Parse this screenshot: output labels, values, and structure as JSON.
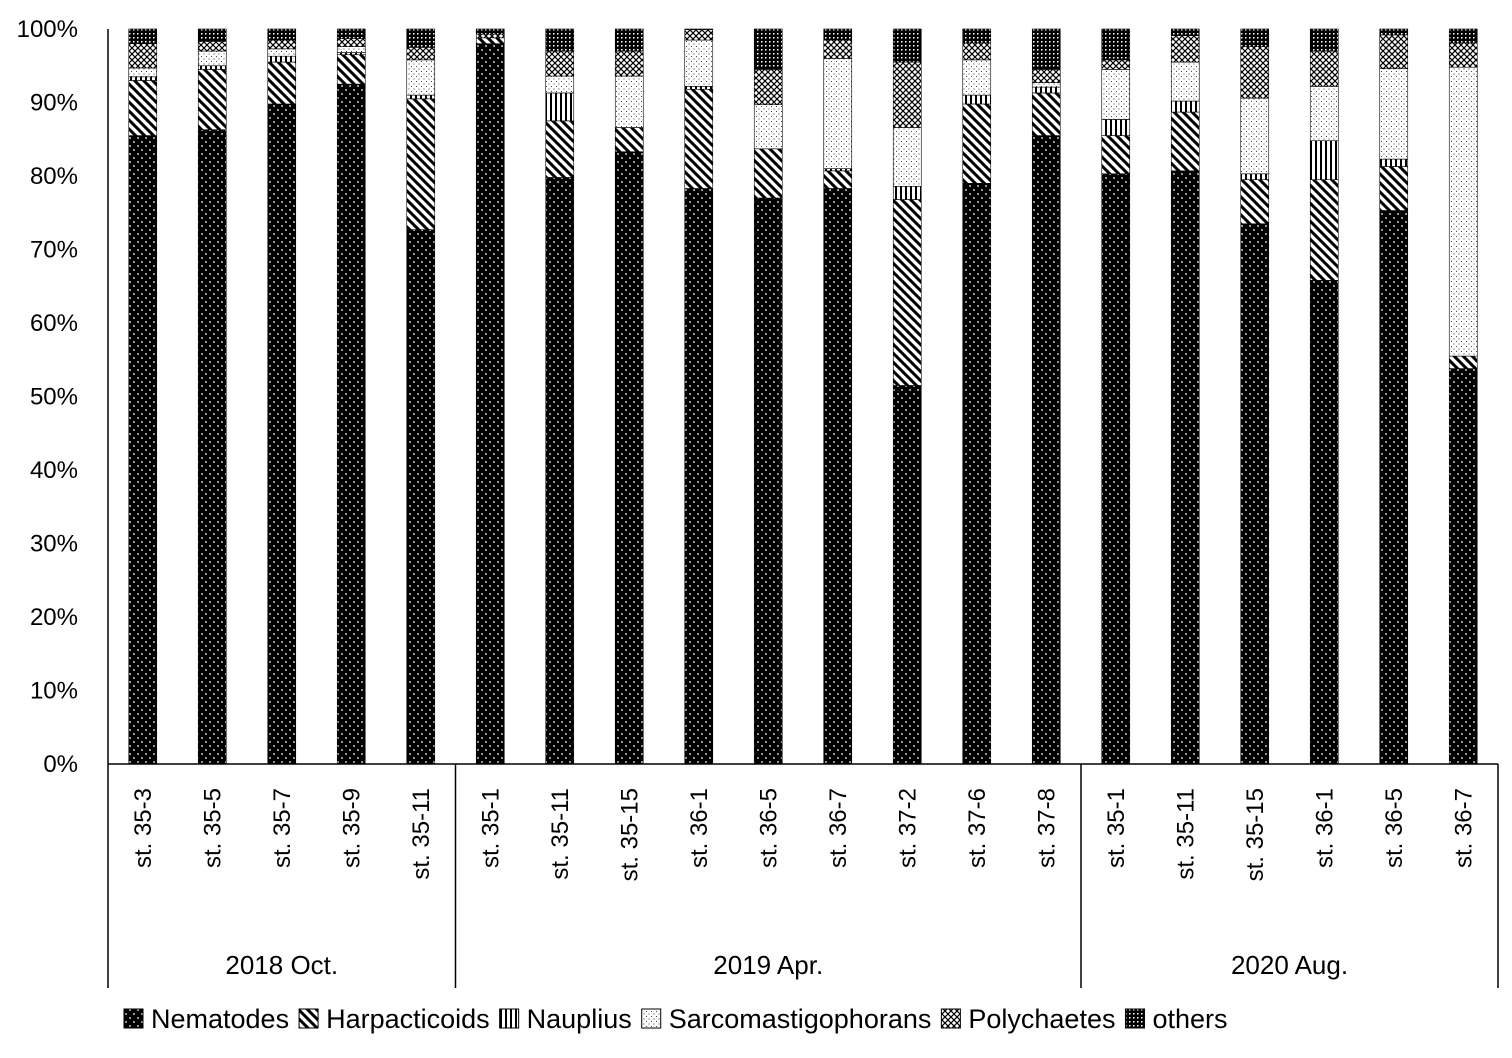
{
  "chart_data": {
    "type": "bar",
    "stacked": true,
    "percent_stacked": true,
    "ylim": [
      0,
      100
    ],
    "yticks": [
      "0%",
      "10%",
      "20%",
      "30%",
      "40%",
      "50%",
      "60%",
      "70%",
      "80%",
      "90%",
      "100%"
    ],
    "categories": [
      "st. 35-3",
      "st. 35-5",
      "st. 35-7",
      "st. 35-9",
      "st. 35-11",
      "st. 35-1",
      "st. 35-11",
      "st. 35-15",
      "st. 36-1",
      "st. 36-5",
      "st. 36-7",
      "st. 37-2",
      "st. 37-6",
      "st. 37-8",
      "st. 35-1",
      "st. 35-11",
      "st. 35-15",
      "st. 36-1",
      "st. 36-5",
      "st. 36-7"
    ],
    "groups": [
      {
        "label": "2018 Oct.",
        "count": 5
      },
      {
        "label": "2019 Apr.",
        "count": 9
      },
      {
        "label": "2020 Aug.",
        "count": 6
      }
    ],
    "series": [
      {
        "name": "Nematodes",
        "pattern": "dots-on-black",
        "values": [
          85.5,
          86.3,
          89.8,
          92.5,
          72.7,
          98.0,
          79.8,
          83.3,
          78.3,
          77.0,
          78.3,
          51.5,
          79.0,
          85.5,
          80.3,
          80.7,
          73.5,
          65.8,
          75.3,
          53.8
        ]
      },
      {
        "name": "Harpacticoids",
        "pattern": "diagonal",
        "values": [
          7.5,
          8.2,
          5.7,
          4.0,
          17.8,
          0.8,
          7.7,
          3.3,
          13.5,
          6.7,
          2.4,
          25.3,
          10.8,
          5.8,
          5.2,
          8.0,
          6.0,
          13.7,
          6.0,
          1.7
        ]
      },
      {
        "name": "Nauplius",
        "pattern": "vertical",
        "values": [
          0.5,
          0.5,
          0.8,
          0.3,
          0.5,
          0,
          3.8,
          0,
          0.4,
          0,
          0.3,
          1.8,
          1.2,
          0.8,
          2.2,
          1.5,
          0.8,
          5.3,
          1.0,
          0
        ]
      },
      {
        "name": "Sarcomastigophorans",
        "pattern": "fine-dots",
        "values": [
          1.2,
          2.0,
          1.0,
          0.8,
          4.8,
          0,
          2.3,
          7.0,
          6.3,
          6.0,
          15.0,
          8.0,
          4.8,
          0.6,
          6.8,
          5.3,
          10.3,
          7.4,
          12.3,
          39.3
        ]
      },
      {
        "name": "Polychaetes",
        "pattern": "cross-hatch",
        "values": [
          3.3,
          1.3,
          1.2,
          1.1,
          1.7,
          0.5,
          3.4,
          3.4,
          1.4,
          4.8,
          2.5,
          8.9,
          2.3,
          1.8,
          1.3,
          3.6,
          7.0,
          4.8,
          4.6,
          3.3
        ]
      },
      {
        "name": "others",
        "pattern": "dense-grid",
        "values": [
          2.0,
          1.7,
          1.5,
          1.3,
          2.5,
          0.7,
          3.0,
          3.0,
          0.1,
          5.5,
          1.5,
          4.5,
          1.9,
          5.5,
          4.2,
          0.9,
          2.4,
          3.0,
          0.8,
          1.9
        ]
      }
    ],
    "legend": "bottom",
    "grid": false
  }
}
